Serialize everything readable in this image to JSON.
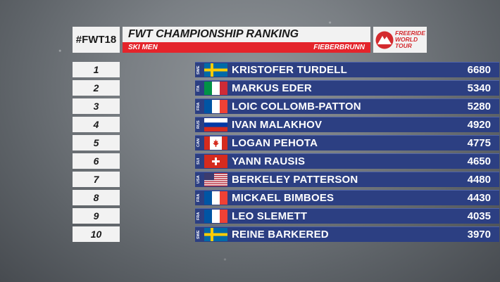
{
  "hashtag": "#FWT18",
  "header": {
    "title": "FWT CHAMPIONSHIP RANKING",
    "category": "SKI MEN",
    "venue": "FIEBERBRUNN"
  },
  "logo": {
    "line1": "FREERIDE",
    "line2": "WORLD",
    "line3": "TOUR"
  },
  "colors": {
    "accent_red": "#e4242b",
    "bar_blue": "#2c3f82"
  },
  "ranking": [
    {
      "rank": "1",
      "nation": "SWE",
      "flag": "sweden-flag-icon",
      "athlete": "KRISTOFER TURDELL",
      "points": "6680"
    },
    {
      "rank": "2",
      "nation": "ITA",
      "flag": "italy-flag-icon",
      "athlete": "MARKUS EDER",
      "points": "5340"
    },
    {
      "rank": "3",
      "nation": "FRA",
      "flag": "france-flag-icon",
      "athlete": "LOIC COLLOMB-PATTON",
      "points": "5280"
    },
    {
      "rank": "4",
      "nation": "RUS",
      "flag": "russia-flag-icon",
      "athlete": "IVAN MALAKHOV",
      "points": "4920"
    },
    {
      "rank": "5",
      "nation": "CAN",
      "flag": "canada-flag-icon",
      "athlete": "LOGAN PEHOTA",
      "points": "4775"
    },
    {
      "rank": "6",
      "nation": "SUI",
      "flag": "switzerland-flag-icon",
      "athlete": "YANN RAUSIS",
      "points": "4650"
    },
    {
      "rank": "7",
      "nation": "USA",
      "flag": "usa-flag-icon",
      "athlete": "BERKELEY PATTERSON",
      "points": "4480"
    },
    {
      "rank": "8",
      "nation": "FRA",
      "flag": "france-flag-icon",
      "athlete": "MICKAEL BIMBOES",
      "points": "4430"
    },
    {
      "rank": "9",
      "nation": "FRA",
      "flag": "france-flag-icon",
      "athlete": "LEO SLEMETT",
      "points": "4035"
    },
    {
      "rank": "10",
      "nation": "SWE",
      "flag": "sweden-flag-icon",
      "athlete": "REINE BARKERED",
      "points": "3970"
    }
  ]
}
